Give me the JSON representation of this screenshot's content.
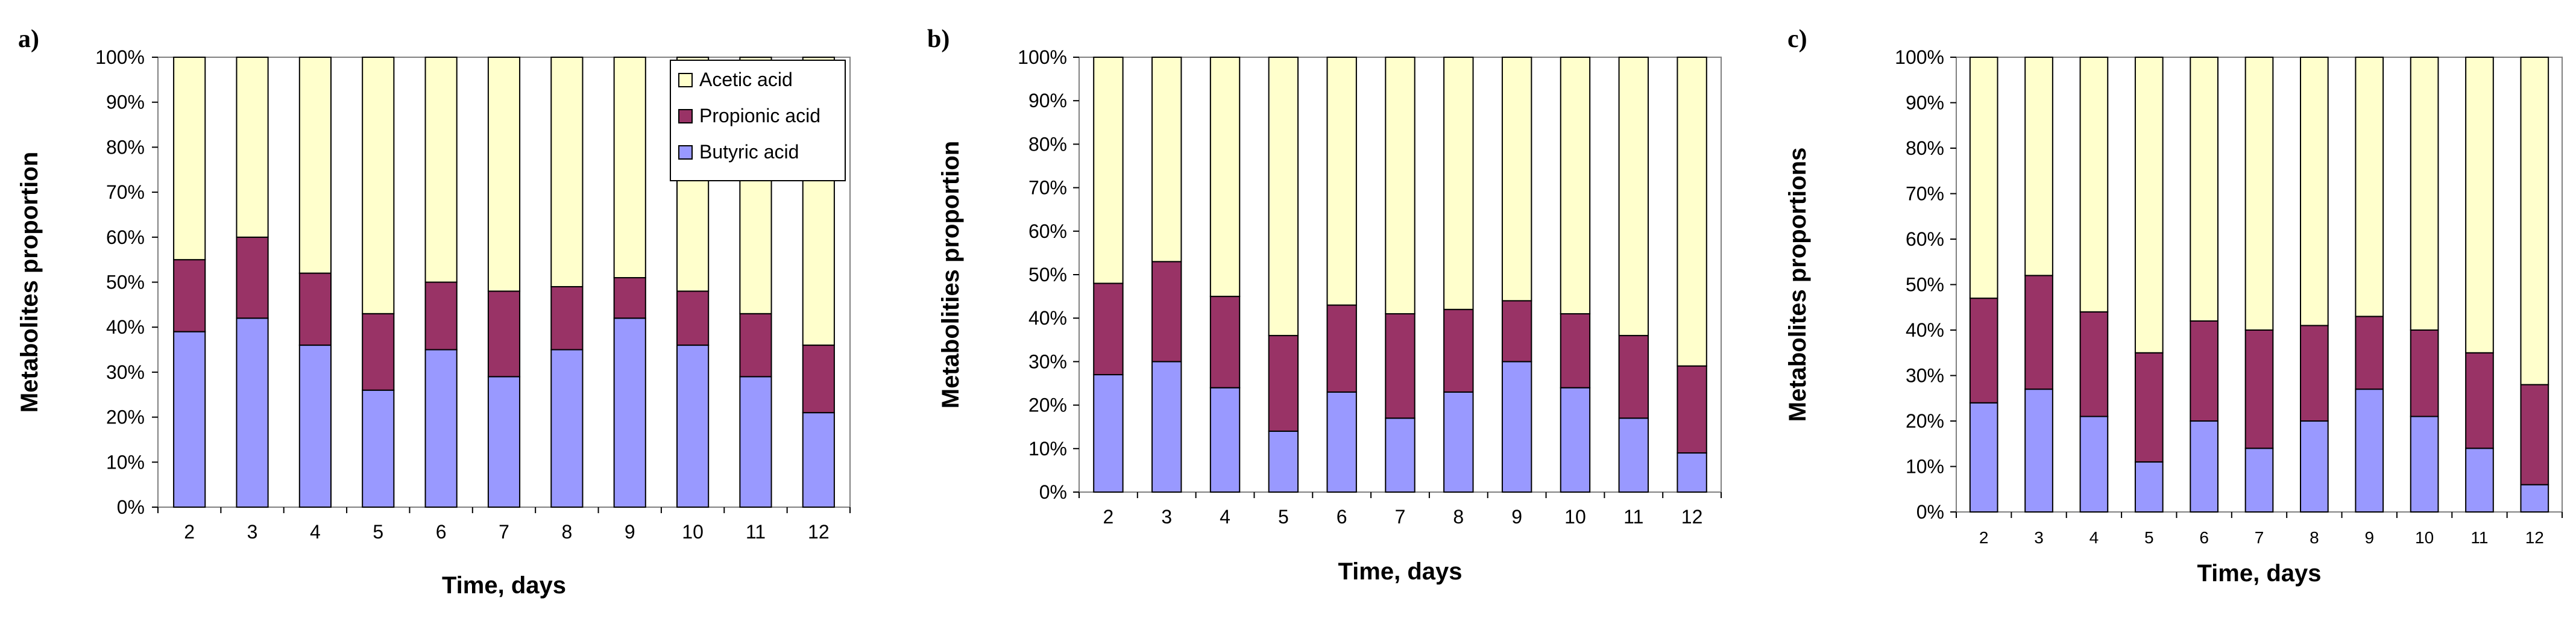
{
  "colors": {
    "acetic": "#ffffcc",
    "propionic": "#993366",
    "butyric": "#9999ff",
    "plot_border": "#808080",
    "bar_outline": "#000000"
  },
  "chart_data": [
    {
      "type": "bar",
      "stacked": true,
      "panel_label": "a)",
      "categories": [
        "2",
        "3",
        "4",
        "5",
        "6",
        "7",
        "8",
        "9",
        "10",
        "11",
        "12"
      ],
      "series": [
        {
          "name": "Butyric acid",
          "color": "#9999ff",
          "values": [
            39,
            42,
            36,
            26,
            35,
            29,
            35,
            42,
            36,
            29,
            21
          ]
        },
        {
          "name": "Propionic acid",
          "color": "#993366",
          "values": [
            16,
            18,
            16,
            17,
            15,
            19,
            14,
            9,
            12,
            14,
            15
          ]
        },
        {
          "name": "Acetic acid",
          "color": "#ffffcc",
          "values": [
            45,
            40,
            48,
            57,
            50,
            52,
            51,
            49,
            52,
            57,
            64
          ]
        }
      ],
      "xlabel": "Time, days",
      "ylabel": "Metabolites proportion",
      "ylim": [
        0,
        100
      ],
      "yticks": [
        "0%",
        "10%",
        "20%",
        "30%",
        "40%",
        "50%",
        "60%",
        "70%",
        "80%",
        "90%",
        "100%"
      ],
      "legend": {
        "position": "top-right",
        "entries": [
          "Acetic acid",
          "Propionic acid",
          "Butyric acid"
        ]
      }
    },
    {
      "type": "bar",
      "stacked": true,
      "panel_label": "b)",
      "categories": [
        "2",
        "3",
        "4",
        "5",
        "6",
        "7",
        "8",
        "9",
        "10",
        "11",
        "12"
      ],
      "series": [
        {
          "name": "Butyric acid",
          "color": "#9999ff",
          "values": [
            27,
            30,
            24,
            14,
            23,
            17,
            23,
            30,
            24,
            17,
            9
          ]
        },
        {
          "name": "Propionic acid",
          "color": "#993366",
          "values": [
            21,
            23,
            21,
            22,
            20,
            24,
            19,
            14,
            17,
            19,
            20
          ]
        },
        {
          "name": "Acetic acid",
          "color": "#ffffcc",
          "values": [
            52,
            47,
            55,
            64,
            57,
            59,
            58,
            56,
            59,
            64,
            71
          ]
        }
      ],
      "xlabel": "Time, days",
      "ylabel": "Metabolities proportion",
      "ylim": [
        0,
        100
      ],
      "yticks": [
        "0%",
        "10%",
        "20%",
        "30%",
        "40%",
        "50%",
        "60%",
        "70%",
        "80%",
        "90%",
        "100%"
      ]
    },
    {
      "type": "bar",
      "stacked": true,
      "panel_label": "c)",
      "categories": [
        "2",
        "3",
        "4",
        "5",
        "6",
        "7",
        "8",
        "9",
        "10",
        "11",
        "12"
      ],
      "series": [
        {
          "name": "Butyric acid",
          "color": "#9999ff",
          "values": [
            24,
            27,
            21,
            11,
            20,
            14,
            20,
            27,
            21,
            14,
            6
          ]
        },
        {
          "name": "Propionic acid",
          "color": "#993366",
          "values": [
            23,
            25,
            23,
            24,
            22,
            26,
            21,
            16,
            19,
            21,
            22
          ]
        },
        {
          "name": "Acetic acid",
          "color": "#ffffcc",
          "values": [
            53,
            48,
            56,
            65,
            58,
            60,
            59,
            57,
            60,
            65,
            72
          ]
        }
      ],
      "xlabel": "Time, days",
      "ylabel": "Metabolites proportions",
      "ylim": [
        0,
        100
      ],
      "yticks": [
        "0%",
        "10%",
        "20%",
        "30%",
        "40%",
        "50%",
        "60%",
        "70%",
        "80%",
        "90%",
        "100%"
      ]
    }
  ]
}
